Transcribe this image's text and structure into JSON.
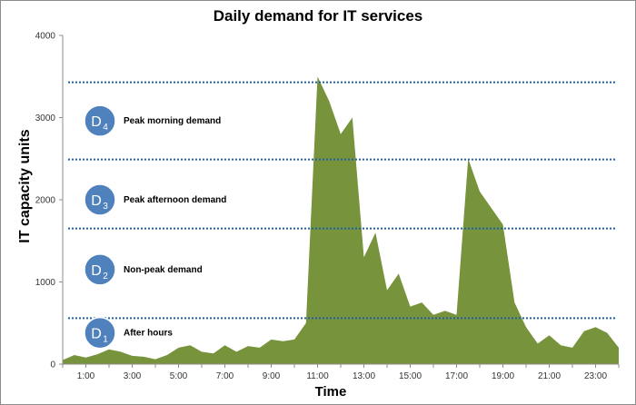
{
  "chart_data": {
    "type": "area",
    "title": "Daily demand for IT services",
    "xlabel": "Time",
    "ylabel": "IT capacity units",
    "ylim": [
      0,
      4000
    ],
    "xlim": [
      0,
      24
    ],
    "y_ticks": [
      0,
      1000,
      2000,
      3000,
      4000
    ],
    "x_ticks": [
      {
        "x": 1,
        "label": "1:00"
      },
      {
        "x": 3,
        "label": "3:00"
      },
      {
        "x": 5,
        "label": "5:00"
      },
      {
        "x": 7,
        "label": "7:00"
      },
      {
        "x": 9,
        "label": "9:00"
      },
      {
        "x": 11,
        "label": "11:00"
      },
      {
        "x": 13,
        "label": "13:00"
      },
      {
        "x": 15,
        "label": "15:00"
      },
      {
        "x": 17,
        "label": "17:00"
      },
      {
        "x": 19,
        "label": "19:00"
      },
      {
        "x": 21,
        "label": "21:00"
      },
      {
        "x": 23,
        "label": "23:00"
      }
    ],
    "series": [
      {
        "color": "#77933c",
        "x": [
          0,
          0.5,
          1,
          1.5,
          2,
          2.5,
          3,
          3.5,
          4,
          4.5,
          5,
          5.5,
          6,
          6.5,
          7,
          7.5,
          8,
          8.5,
          9,
          9.5,
          10,
          10.5,
          11,
          11.5,
          12,
          12.5,
          13,
          13.5,
          14,
          14.5,
          15,
          15.5,
          16,
          16.5,
          17,
          17.5,
          18,
          18.5,
          19,
          19.5,
          20,
          20.5,
          21,
          21.5,
          22,
          22.5,
          23,
          23.5,
          24
        ],
        "y": [
          50,
          110,
          80,
          120,
          180,
          150,
          100,
          90,
          60,
          110,
          200,
          230,
          150,
          130,
          230,
          150,
          220,
          200,
          300,
          280,
          300,
          500,
          3500,
          3200,
          2800,
          3000,
          1300,
          1600,
          900,
          1100,
          700,
          750,
          600,
          650,
          600,
          2500,
          2100,
          1900,
          1700,
          750,
          450,
          250,
          350,
          230,
          200,
          400,
          450,
          380,
          200
        ]
      }
    ],
    "threshold_lines": [
      {
        "value": 560,
        "color": "#1f5fa8"
      },
      {
        "value": 1650,
        "color": "#1f5fa8"
      },
      {
        "value": 2490,
        "color": "#1f5fa8"
      },
      {
        "value": 3430,
        "color": "#1f5fa8"
      }
    ],
    "bands": [
      {
        "badge": "D",
        "sub": "1",
        "label": "After hours",
        "value": 380
      },
      {
        "badge": "D",
        "sub": "2",
        "label": "Non-peak demand",
        "value": 1150
      },
      {
        "badge": "D",
        "sub": "3",
        "label": "Peak afternoon demand",
        "value": 2000
      },
      {
        "badge": "D",
        "sub": "4",
        "label": "Peak morning demand",
        "value": 2960
      }
    ],
    "badge_color": "#4f81bd",
    "grid": false
  }
}
